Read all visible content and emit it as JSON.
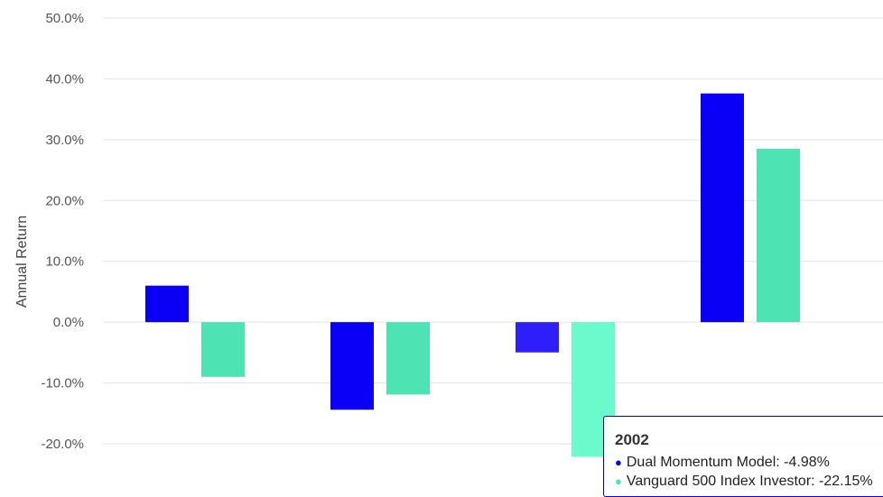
{
  "chart_data": {
    "type": "bar",
    "ylabel": "Annual Return",
    "ylim": [
      -20,
      50
    ],
    "yticks": [
      50,
      40,
      30,
      20,
      10,
      0,
      -10,
      -20
    ],
    "ytick_labels": [
      "50.0%",
      "40.0%",
      "30.0%",
      "20.0%",
      "10.0%",
      "0.0%",
      "-10.0%",
      "-20.0%"
    ],
    "grid": true,
    "categories": [
      "",
      "",
      "2002",
      ""
    ],
    "series": [
      {
        "name": "Dual Momentum Model",
        "color": "#0a00f5",
        "values": [
          6.0,
          -14.4,
          -4.98,
          37.6
        ]
      },
      {
        "name": "Vanguard 500 Index Investor",
        "color": "#4de3b3",
        "values": [
          -9.0,
          -11.9,
          -22.15,
          28.5
        ]
      }
    ],
    "highlight_category_index": 2,
    "highlight_colors": [
      "#2e1ffa",
      "#6afacb"
    ]
  },
  "tooltip": {
    "title": "2002",
    "dot": "●",
    "rows": [
      {
        "text": "Dual Momentum Model: -4.98%",
        "color": "#0a00f5"
      },
      {
        "text": "Vanguard 500 Index Investor: -22.15%",
        "color": "#4de3b3"
      }
    ]
  }
}
